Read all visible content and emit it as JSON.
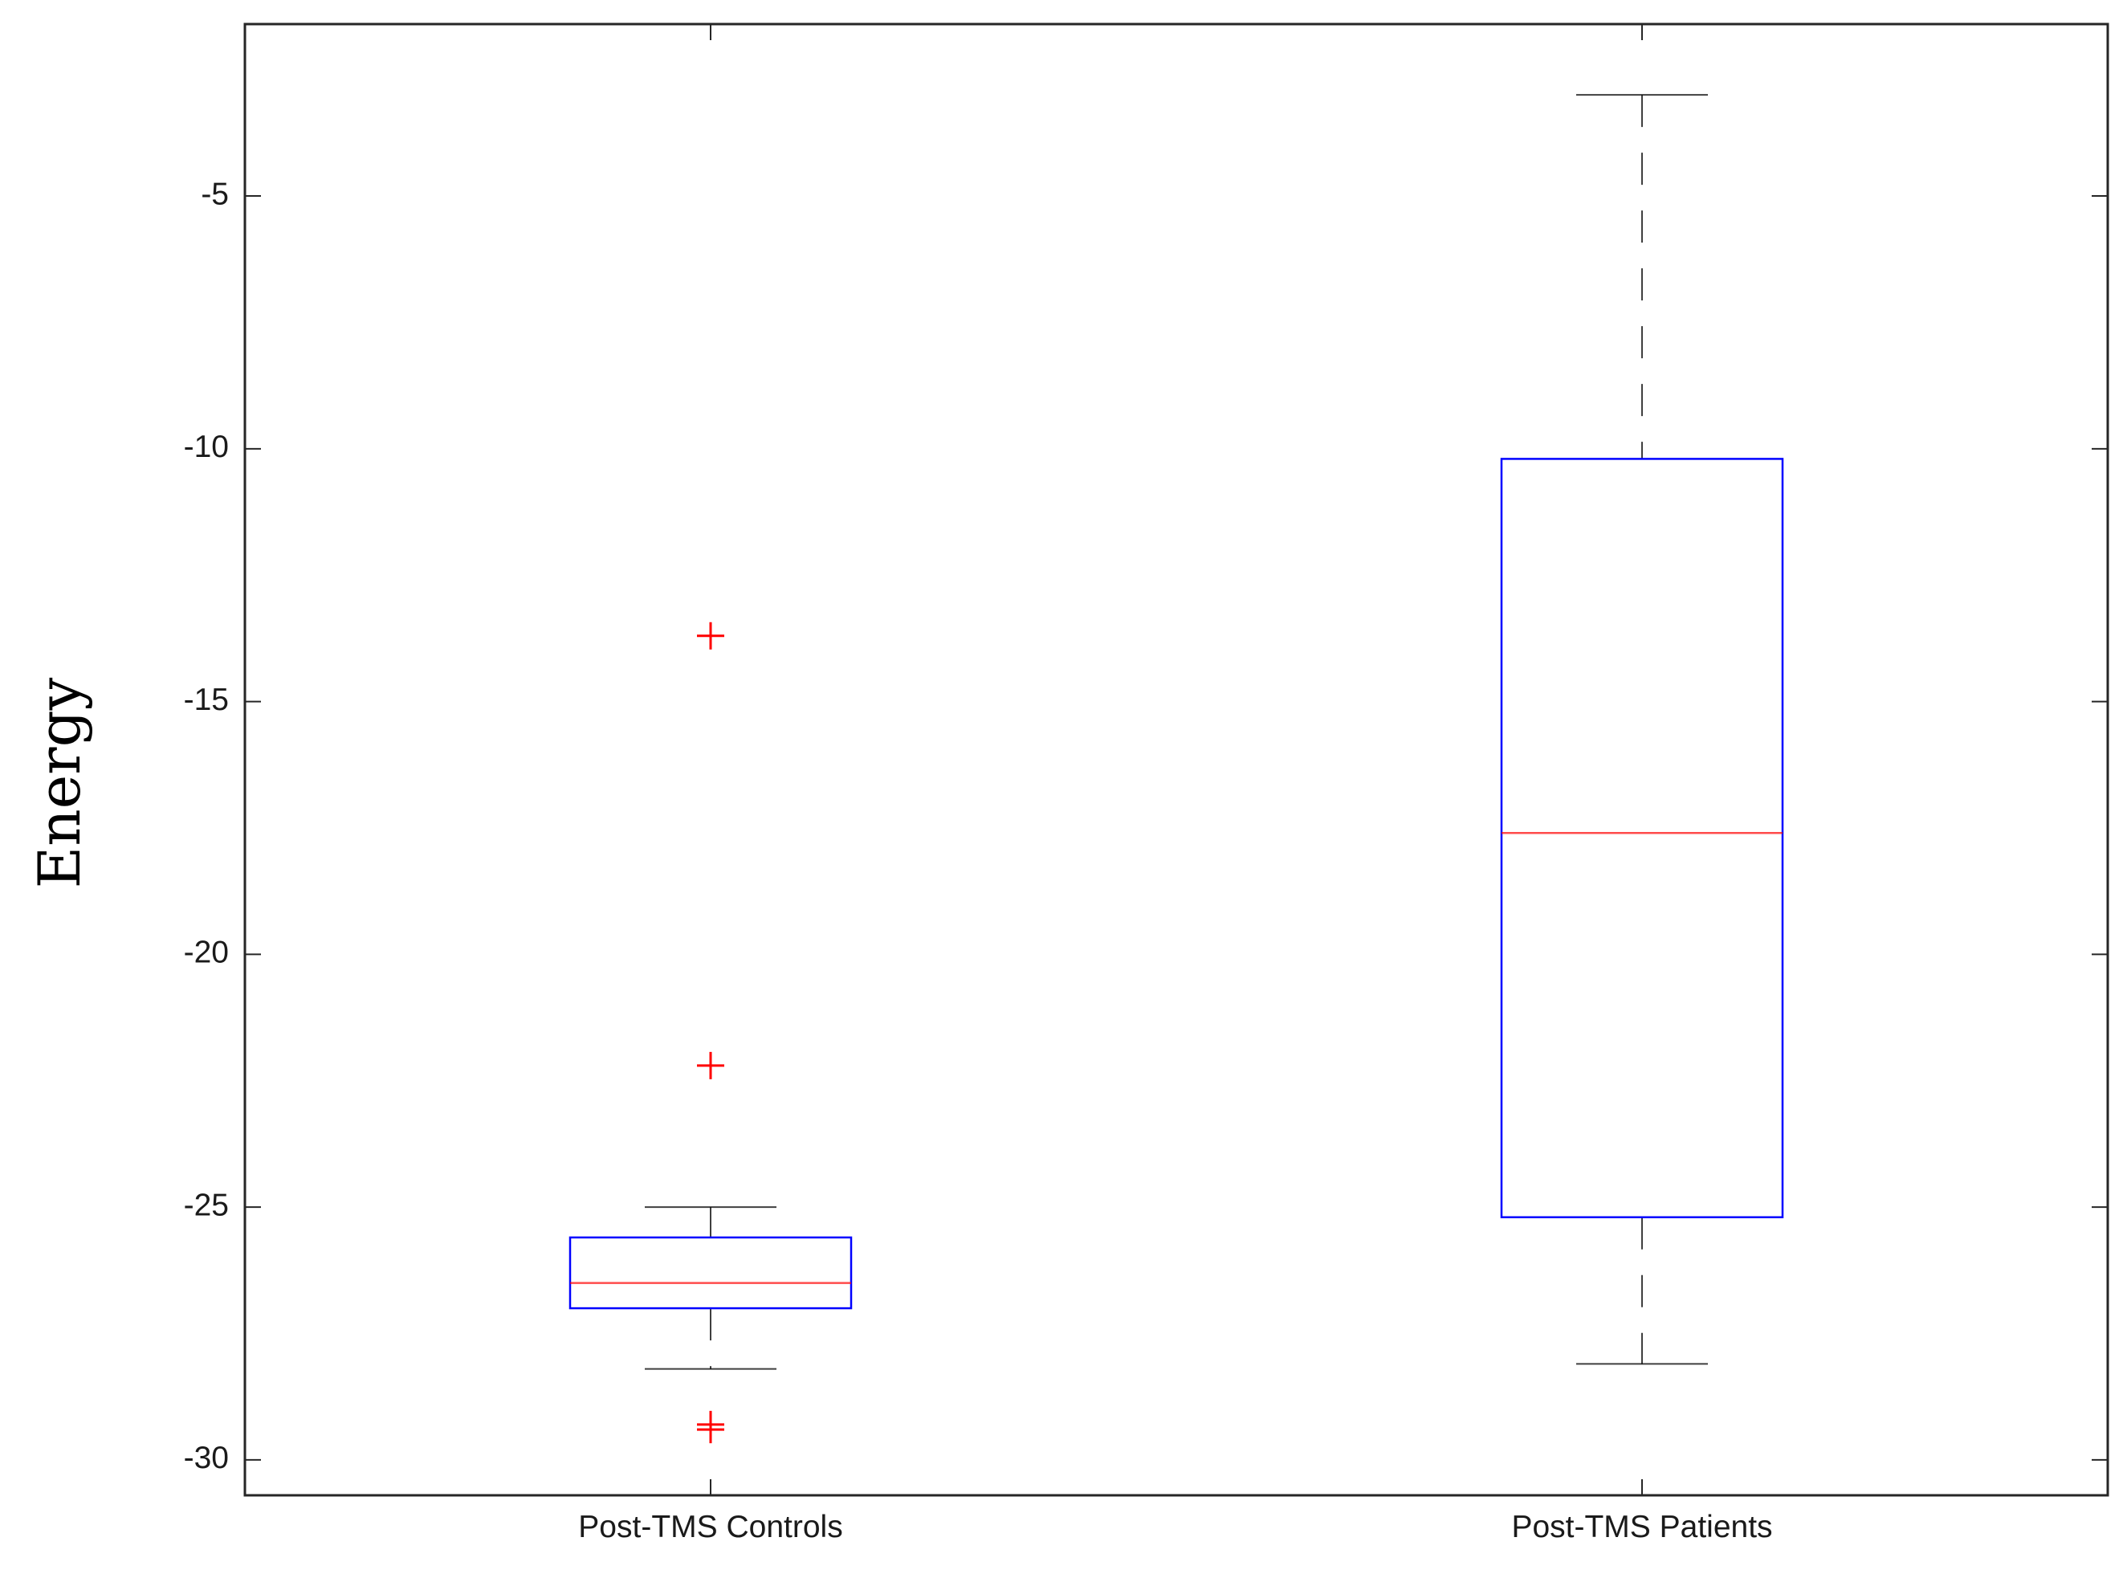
{
  "chart_data": {
    "type": "box",
    "title": "",
    "xlabel": "",
    "ylabel": "Energy",
    "ylim": [
      -30.7,
      -1.6
    ],
    "yticks": [
      -5,
      -10,
      -15,
      -20,
      -25,
      -30
    ],
    "ytick_labels": [
      "-5",
      "-10",
      "-15",
      "-20",
      "-25",
      "-30"
    ],
    "grid": false,
    "categories": [
      "Post-TMS Controls",
      "Post-TMS Patients"
    ],
    "boxes": [
      {
        "name": "Post-TMS Controls",
        "whisker_high": -25.0,
        "q3": -25.6,
        "median": -26.5,
        "q1": -27.0,
        "whisker_low": -28.2,
        "outliers": [
          -13.7,
          -22.2,
          -29.3,
          -29.4
        ]
      },
      {
        "name": "Post-TMS Patients",
        "whisker_high": -3.0,
        "q3": -10.2,
        "median": -17.6,
        "q1": -25.2,
        "whisker_low": -28.1,
        "outliers": []
      }
    ],
    "colors": {
      "box": "#0000ff",
      "median": "#ff0000",
      "whisker": "#000000",
      "outlier": "#ff0000",
      "axes": "#262626"
    }
  }
}
